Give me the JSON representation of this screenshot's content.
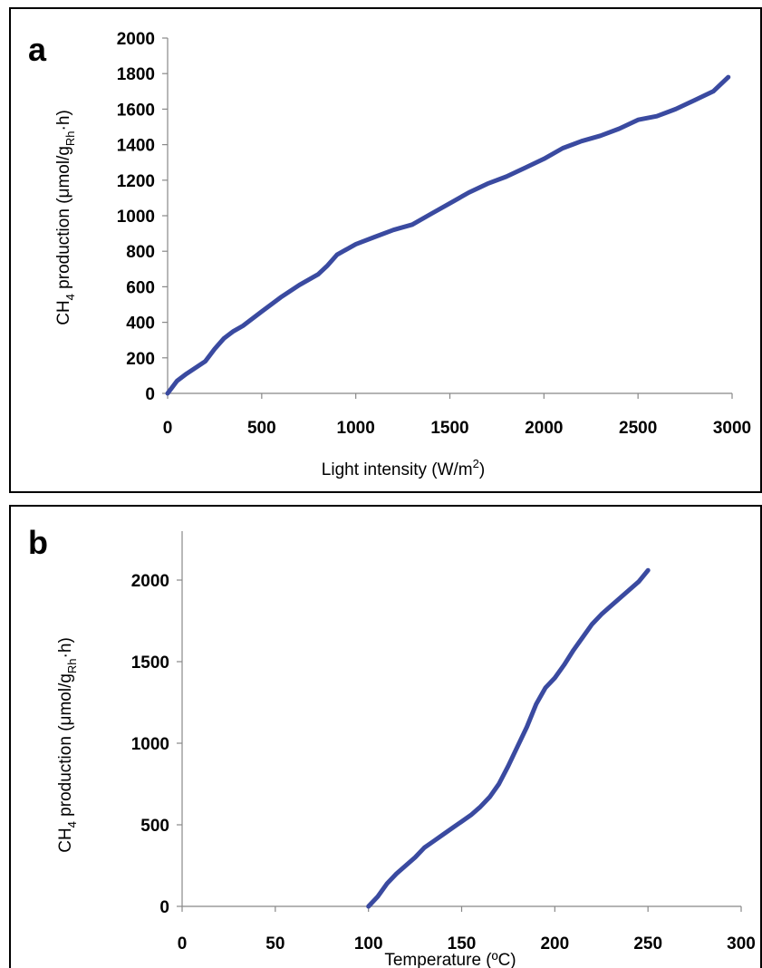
{
  "chart_data": [
    {
      "type": "line",
      "panel_label": "a",
      "ylabel": {
        "main": "CH",
        "sub1": "4",
        "mid": " production (μmol/g",
        "sub2": "Rh",
        "end": "·h)"
      },
      "xlabel": {
        "main": "Light intensity (W/m",
        "sup": "2",
        "end": ")"
      },
      "xlim": [
        0,
        3000
      ],
      "ylim": [
        0,
        2000
      ],
      "xticks": [
        "0",
        "500",
        "1000",
        "1500",
        "2000",
        "2500",
        "3000"
      ],
      "xtick_values": [
        0,
        500,
        1000,
        1500,
        2000,
        2500,
        3000
      ],
      "yticks": [
        "0",
        "200",
        "400",
        "600",
        "800",
        "1000",
        "1200",
        "1400",
        "1600",
        "1800",
        "2000"
      ],
      "ytick_values": [
        0,
        200,
        400,
        600,
        800,
        1000,
        1200,
        1400,
        1600,
        1800,
        2000
      ],
      "grid": false,
      "color": "#3a4aa0",
      "series": [
        {
          "x": [
            0,
            50,
            100,
            200,
            250,
            300,
            350,
            400,
            500,
            600,
            700,
            800,
            850,
            900,
            1000,
            1100,
            1200,
            1300,
            1400,
            1500,
            1600,
            1700,
            1800,
            1900,
            2000,
            2100,
            2200,
            2300,
            2400,
            2500,
            2600,
            2700,
            2800,
            2900,
            2980
          ],
          "y": [
            0,
            70,
            110,
            180,
            250,
            310,
            350,
            380,
            460,
            540,
            610,
            670,
            720,
            780,
            840,
            880,
            920,
            950,
            1010,
            1070,
            1130,
            1180,
            1220,
            1270,
            1320,
            1380,
            1420,
            1450,
            1490,
            1540,
            1560,
            1600,
            1650,
            1700,
            1780
          ]
        }
      ]
    },
    {
      "type": "line",
      "panel_label": "b",
      "ylabel": {
        "main": "CH",
        "sub1": "4",
        "mid": " production (μmol/g",
        "sub2": "Rh",
        "end": "·h)"
      },
      "xlabel": {
        "main": "Temperature (ºC)"
      },
      "xlim": [
        0,
        300
      ],
      "ylim": [
        0,
        2300
      ],
      "xticks": [
        "0",
        "50",
        "100",
        "150",
        "200",
        "250",
        "300"
      ],
      "xtick_values": [
        0,
        50,
        100,
        150,
        200,
        250,
        300
      ],
      "yticks": [
        "0",
        "500",
        "1000",
        "1500",
        "2000"
      ],
      "ytick_values": [
        0,
        500,
        1000,
        1500,
        2000
      ],
      "grid": false,
      "color": "#3a4aa0",
      "series": [
        {
          "x": [
            100,
            105,
            110,
            115,
            120,
            125,
            130,
            135,
            140,
            145,
            150,
            155,
            160,
            165,
            170,
            175,
            180,
            185,
            190,
            195,
            200,
            205,
            210,
            215,
            220,
            225,
            230,
            235,
            240,
            245,
            250
          ],
          "y": [
            0,
            60,
            140,
            200,
            250,
            300,
            360,
            400,
            440,
            480,
            520,
            560,
            610,
            670,
            750,
            860,
            980,
            1100,
            1240,
            1340,
            1400,
            1480,
            1570,
            1650,
            1730,
            1790,
            1840,
            1890,
            1940,
            1990,
            2060
          ]
        }
      ]
    }
  ]
}
